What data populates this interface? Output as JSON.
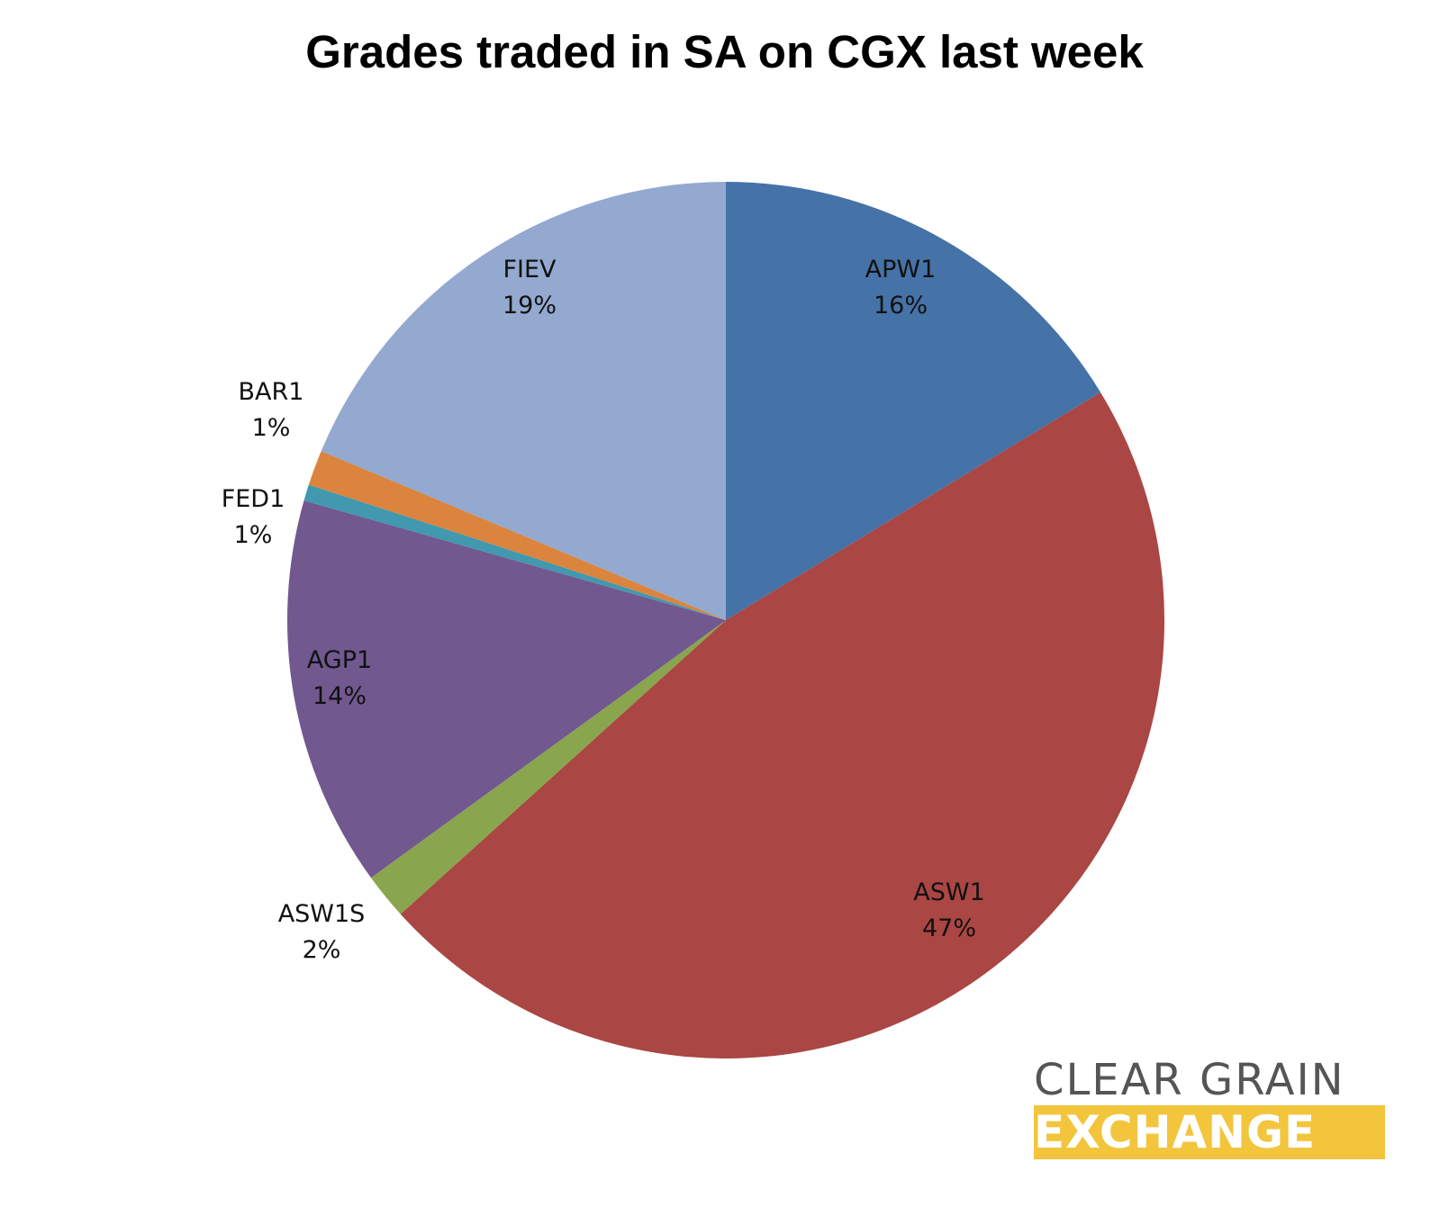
{
  "chart_data": {
    "type": "pie",
    "title": "Grades traded in SA on CGX last week",
    "slices": [
      {
        "label": "APW1",
        "percent_label": "16%",
        "value": 16.3,
        "color": "#4572a7"
      },
      {
        "label": "ASW1",
        "percent_label": "47%",
        "value": 47.0,
        "color": "#aa4643"
      },
      {
        "label": "ASW1S",
        "percent_label": "2%",
        "value": 1.7,
        "color": "#89a54e"
      },
      {
        "label": "AGP1",
        "percent_label": "14%",
        "value": 14.4,
        "color": "#71588f"
      },
      {
        "label": "FED1",
        "percent_label": "1%",
        "value": 0.6,
        "color": "#4198af"
      },
      {
        "label": "BAR1",
        "percent_label": "1%",
        "value": 1.3,
        "color": "#db843d"
      },
      {
        "label": "FIEV",
        "percent_label": "19%",
        "value": 18.7,
        "color": "#93a9cf"
      }
    ],
    "start_angle": "12 o'clock",
    "direction": "clockwise",
    "legend": "none",
    "data_labels": "category name and percentage"
  },
  "logo": {
    "line1": "CLEAR GRAIN",
    "line2": "EXCHANGE",
    "line1_color": "#555555",
    "line2_background": "#f2c53d",
    "line2_text_color": "#ffffff"
  }
}
